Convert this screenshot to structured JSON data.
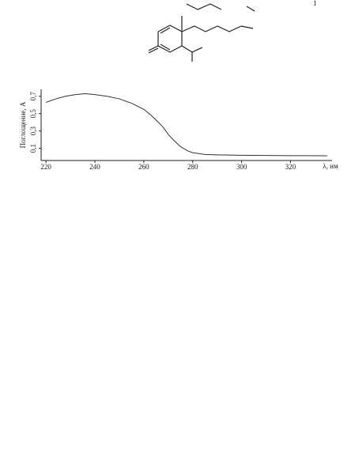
{
  "structure": {
    "label": "1"
  },
  "chart_data": {
    "type": "line",
    "x_label": "λ, нм",
    "y_label": "Поглощение, А",
    "x": [
      220,
      224,
      228,
      232,
      236,
      240,
      245,
      250,
      255,
      260,
      263,
      266,
      268,
      270,
      272,
      275,
      278,
      280,
      285,
      290,
      300,
      310,
      320,
      335
    ],
    "series": [
      {
        "color": "#333333",
        "values": [
          0.63,
          0.67,
          0.7,
          0.72,
          0.73,
          0.72,
          0.7,
          0.67,
          0.62,
          0.55,
          0.48,
          0.4,
          0.34,
          0.26,
          0.2,
          0.12,
          0.07,
          0.05,
          0.03,
          0.025,
          0.02,
          0.018,
          0.016,
          0.015
        ]
      }
    ],
    "xlim": [
      218,
      337
    ],
    "ylim": [
      -0.04,
      0.78
    ],
    "xticks": [
      220,
      240,
      260,
      280,
      300,
      320
    ],
    "yticks": [
      {
        "value": 0.1,
        "label": "0,1"
      },
      {
        "value": 0.3,
        "label": "0,3"
      },
      {
        "value": 0.5,
        "label": "0,5"
      },
      {
        "value": 0.7,
        "label": "0,7"
      }
    ]
  }
}
